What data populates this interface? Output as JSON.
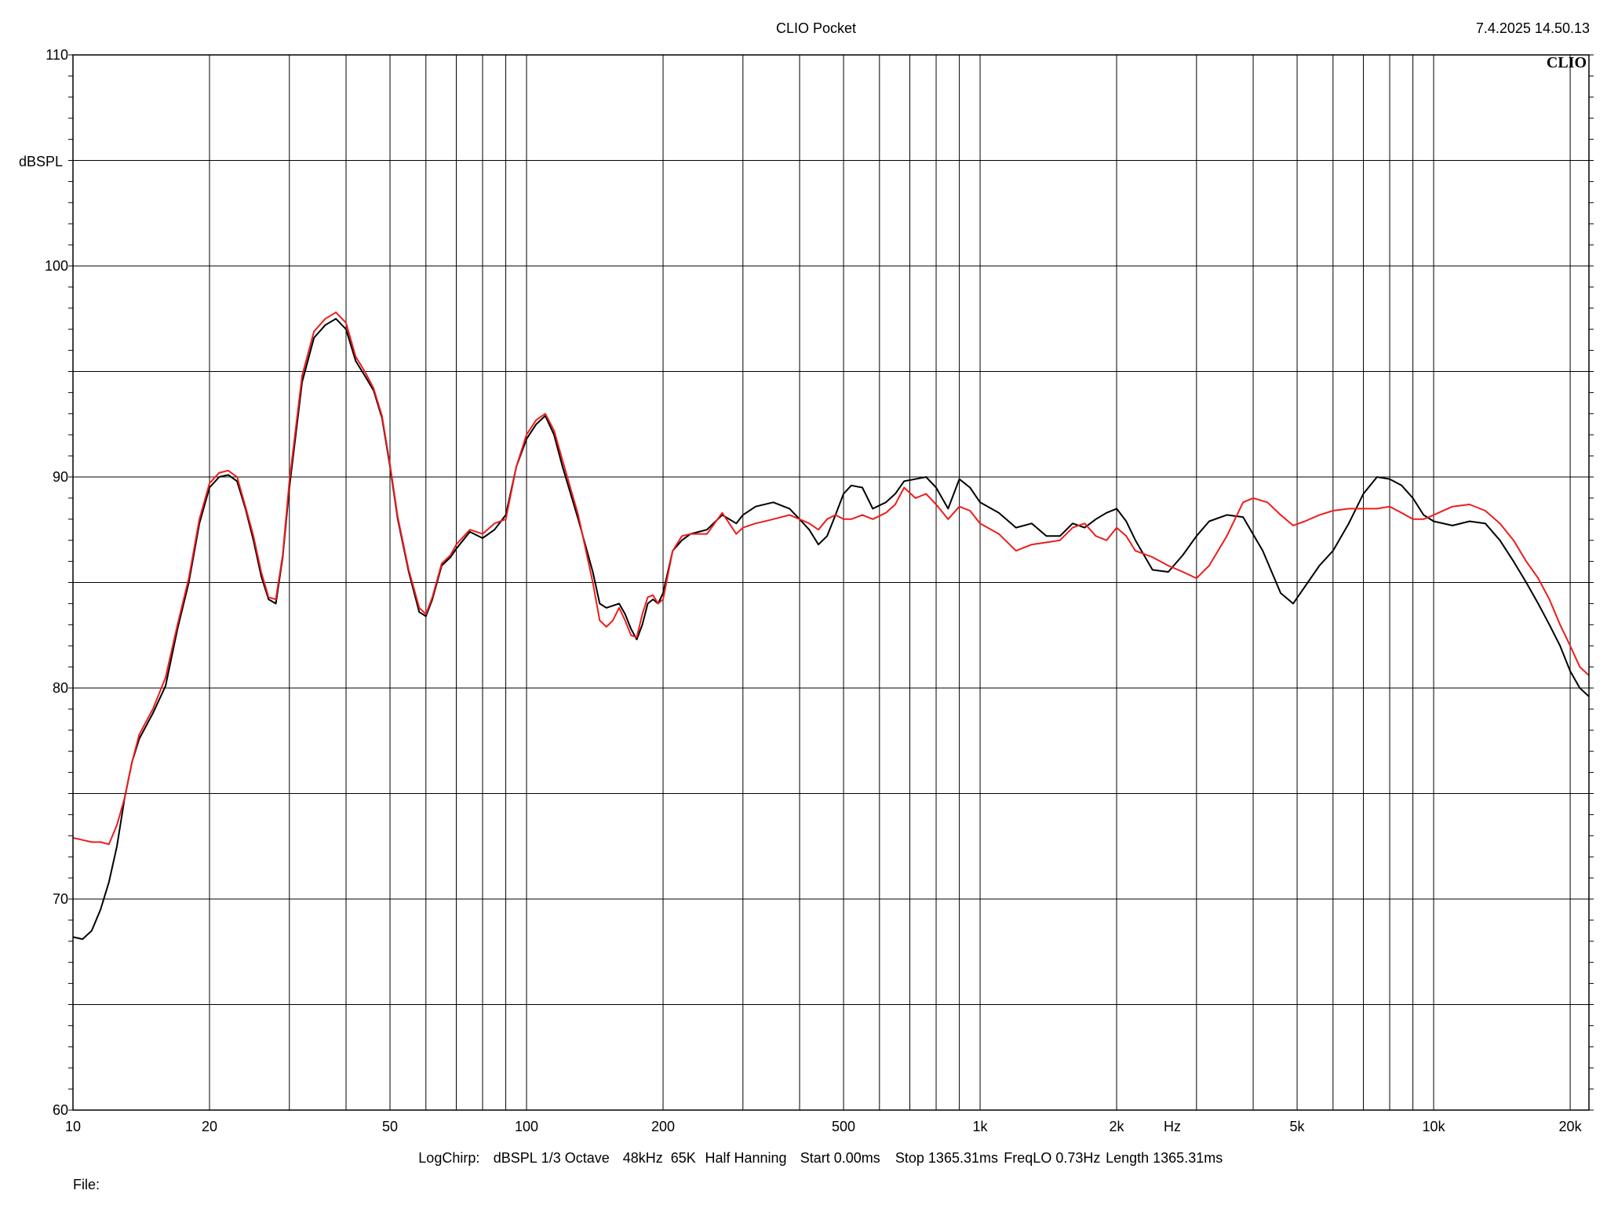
{
  "header": {
    "title": "CLIO Pocket",
    "timestamp": "7.4.2025 14.50.13",
    "brand": "CLIO"
  },
  "footer": {
    "settings": [
      "LogChirp:",
      "dBSPL",
      "1/3 Octave",
      "48kHz",
      "65K",
      "Half Hanning",
      "Start 0.00ms",
      "Stop 1365.31ms",
      "FreqLO 0.73Hz",
      "Length 1365.31ms"
    ],
    "file_label": "File:"
  },
  "chart_data": {
    "type": "line",
    "xscale": "log",
    "xlim": [
      10,
      22000
    ],
    "ylim": [
      60,
      110
    ],
    "ylabel": "dBSPL",
    "xunit": "Hz",
    "grid": true,
    "x_ticks": [
      {
        "value": 10,
        "label": "10"
      },
      {
        "value": 20,
        "label": "20"
      },
      {
        "value": 50,
        "label": "50"
      },
      {
        "value": 100,
        "label": "100"
      },
      {
        "value": 200,
        "label": "200"
      },
      {
        "value": 500,
        "label": "500"
      },
      {
        "value": 1000,
        "label": "1k"
      },
      {
        "value": 2000,
        "label": "2k"
      },
      {
        "value": 5000,
        "label": "5k"
      },
      {
        "value": 10000,
        "label": "10k"
      },
      {
        "value": 20000,
        "label": "20k"
      }
    ],
    "y_ticks": [
      {
        "value": 60,
        "label": "60"
      },
      {
        "value": 70,
        "label": "70"
      },
      {
        "value": 80,
        "label": "80"
      },
      {
        "value": 90,
        "label": "90"
      },
      {
        "value": 100,
        "label": "100"
      },
      {
        "value": 110,
        "label": "110"
      }
    ],
    "series": [
      {
        "color": "#000000",
        "points": [
          [
            10,
            68.2
          ],
          [
            10.5,
            68.1
          ],
          [
            11,
            68.5
          ],
          [
            11.5,
            69.5
          ],
          [
            12,
            70.8
          ],
          [
            12.5,
            72.5
          ],
          [
            13,
            74.8
          ],
          [
            13.5,
            76.5
          ],
          [
            14,
            77.6
          ],
          [
            15,
            78.8
          ],
          [
            16,
            80.1
          ],
          [
            17,
            82.8
          ],
          [
            18,
            85.0
          ],
          [
            19,
            87.8
          ],
          [
            20,
            89.5
          ],
          [
            21,
            90.0
          ],
          [
            22,
            90.1
          ],
          [
            23,
            89.8
          ],
          [
            24,
            88.5
          ],
          [
            25,
            87.0
          ],
          [
            26,
            85.3
          ],
          [
            27,
            84.2
          ],
          [
            28,
            84.0
          ],
          [
            29,
            86.2
          ],
          [
            30,
            89.5
          ],
          [
            32,
            94.5
          ],
          [
            34,
            96.6
          ],
          [
            36,
            97.2
          ],
          [
            38,
            97.5
          ],
          [
            40,
            97.0
          ],
          [
            42,
            95.5
          ],
          [
            44,
            94.8
          ],
          [
            46,
            94.1
          ],
          [
            48,
            92.8
          ],
          [
            50,
            90.5
          ],
          [
            52,
            88.0
          ],
          [
            55,
            85.5
          ],
          [
            58,
            83.6
          ],
          [
            60,
            83.4
          ],
          [
            62,
            84.2
          ],
          [
            65,
            85.8
          ],
          [
            68,
            86.2
          ],
          [
            70,
            86.6
          ],
          [
            75,
            87.4
          ],
          [
            80,
            87.1
          ],
          [
            85,
            87.5
          ],
          [
            90,
            88.2
          ],
          [
            95,
            90.5
          ],
          [
            100,
            91.8
          ],
          [
            105,
            92.5
          ],
          [
            110,
            92.9
          ],
          [
            115,
            92.0
          ],
          [
            120,
            90.5
          ],
          [
            130,
            88.0
          ],
          [
            140,
            85.5
          ],
          [
            145,
            84.0
          ],
          [
            150,
            83.8
          ],
          [
            155,
            83.9
          ],
          [
            160,
            84.0
          ],
          [
            165,
            83.5
          ],
          [
            170,
            82.8
          ],
          [
            175,
            82.3
          ],
          [
            180,
            83.0
          ],
          [
            185,
            84.0
          ],
          [
            190,
            84.2
          ],
          [
            195,
            84.0
          ],
          [
            200,
            84.5
          ],
          [
            210,
            86.5
          ],
          [
            220,
            87.0
          ],
          [
            230,
            87.3
          ],
          [
            250,
            87.5
          ],
          [
            270,
            88.2
          ],
          [
            290,
            87.8
          ],
          [
            300,
            88.2
          ],
          [
            320,
            88.6
          ],
          [
            350,
            88.8
          ],
          [
            380,
            88.5
          ],
          [
            400,
            88.0
          ],
          [
            420,
            87.5
          ],
          [
            440,
            86.8
          ],
          [
            460,
            87.2
          ],
          [
            480,
            88.2
          ],
          [
            500,
            89.2
          ],
          [
            520,
            89.6
          ],
          [
            550,
            89.5
          ],
          [
            580,
            88.5
          ],
          [
            620,
            88.8
          ],
          [
            650,
            89.2
          ],
          [
            680,
            89.8
          ],
          [
            720,
            89.9
          ],
          [
            760,
            90.0
          ],
          [
            800,
            89.5
          ],
          [
            850,
            88.5
          ],
          [
            900,
            89.9
          ],
          [
            950,
            89.5
          ],
          [
            1000,
            88.8
          ],
          [
            1100,
            88.3
          ],
          [
            1200,
            87.6
          ],
          [
            1300,
            87.8
          ],
          [
            1400,
            87.2
          ],
          [
            1500,
            87.2
          ],
          [
            1600,
            87.8
          ],
          [
            1700,
            87.6
          ],
          [
            1800,
            88.0
          ],
          [
            1900,
            88.3
          ],
          [
            2000,
            88.5
          ],
          [
            2100,
            87.9
          ],
          [
            2200,
            87.0
          ],
          [
            2400,
            85.6
          ],
          [
            2600,
            85.5
          ],
          [
            2800,
            86.3
          ],
          [
            3000,
            87.2
          ],
          [
            3200,
            87.9
          ],
          [
            3500,
            88.2
          ],
          [
            3800,
            88.1
          ],
          [
            4200,
            86.5
          ],
          [
            4600,
            84.5
          ],
          [
            4900,
            84.0
          ],
          [
            5200,
            84.8
          ],
          [
            5600,
            85.8
          ],
          [
            6000,
            86.5
          ],
          [
            6500,
            87.8
          ],
          [
            7000,
            89.2
          ],
          [
            7500,
            90.0
          ],
          [
            8000,
            89.9
          ],
          [
            8500,
            89.6
          ],
          [
            9000,
            89.0
          ],
          [
            9500,
            88.2
          ],
          [
            10000,
            87.9
          ],
          [
            11000,
            87.7
          ],
          [
            12000,
            87.9
          ],
          [
            13000,
            87.8
          ],
          [
            14000,
            87.0
          ],
          [
            15000,
            86.0
          ],
          [
            16000,
            85.0
          ],
          [
            17000,
            84.0
          ],
          [
            18000,
            83.0
          ],
          [
            19000,
            82.0
          ],
          [
            20000,
            80.8
          ],
          [
            21000,
            80.0
          ],
          [
            22000,
            79.6
          ]
        ]
      },
      {
        "color": "#ee1c1c",
        "points": [
          [
            10,
            72.9
          ],
          [
            10.5,
            72.8
          ],
          [
            11,
            72.7
          ],
          [
            11.5,
            72.7
          ],
          [
            12,
            72.6
          ],
          [
            12.5,
            73.5
          ],
          [
            13,
            74.8
          ],
          [
            13.5,
            76.5
          ],
          [
            14,
            77.8
          ],
          [
            15,
            79.0
          ],
          [
            16,
            80.5
          ],
          [
            17,
            83.0
          ],
          [
            18,
            85.2
          ],
          [
            19,
            88.0
          ],
          [
            20,
            89.7
          ],
          [
            21,
            90.2
          ],
          [
            22,
            90.3
          ],
          [
            23,
            90.0
          ],
          [
            24,
            88.6
          ],
          [
            25,
            87.2
          ],
          [
            26,
            85.5
          ],
          [
            27,
            84.3
          ],
          [
            28,
            84.2
          ],
          [
            29,
            86.3
          ],
          [
            30,
            89.8
          ],
          [
            32,
            94.8
          ],
          [
            34,
            96.9
          ],
          [
            36,
            97.5
          ],
          [
            38,
            97.8
          ],
          [
            40,
            97.3
          ],
          [
            42,
            95.7
          ],
          [
            44,
            95.0
          ],
          [
            46,
            94.2
          ],
          [
            48,
            92.9
          ],
          [
            50,
            90.6
          ],
          [
            52,
            88.1
          ],
          [
            55,
            85.6
          ],
          [
            58,
            83.8
          ],
          [
            60,
            83.5
          ],
          [
            62,
            84.3
          ],
          [
            65,
            85.9
          ],
          [
            68,
            86.3
          ],
          [
            70,
            86.8
          ],
          [
            75,
            87.5
          ],
          [
            80,
            87.3
          ],
          [
            85,
            87.8
          ],
          [
            90,
            88.0
          ],
          [
            95,
            90.5
          ],
          [
            100,
            92.0
          ],
          [
            105,
            92.7
          ],
          [
            110,
            93.0
          ],
          [
            115,
            92.2
          ],
          [
            120,
            90.8
          ],
          [
            130,
            88.2
          ],
          [
            140,
            85.0
          ],
          [
            145,
            83.2
          ],
          [
            150,
            82.9
          ],
          [
            155,
            83.2
          ],
          [
            160,
            83.8
          ],
          [
            165,
            83.2
          ],
          [
            170,
            82.5
          ],
          [
            175,
            82.4
          ],
          [
            180,
            83.5
          ],
          [
            185,
            84.3
          ],
          [
            190,
            84.4
          ],
          [
            195,
            84.0
          ],
          [
            200,
            84.2
          ],
          [
            210,
            86.5
          ],
          [
            220,
            87.2
          ],
          [
            230,
            87.3
          ],
          [
            250,
            87.3
          ],
          [
            270,
            88.3
          ],
          [
            290,
            87.3
          ],
          [
            300,
            87.6
          ],
          [
            320,
            87.8
          ],
          [
            350,
            88.0
          ],
          [
            380,
            88.2
          ],
          [
            400,
            88.0
          ],
          [
            420,
            87.8
          ],
          [
            440,
            87.5
          ],
          [
            460,
            88.0
          ],
          [
            480,
            88.2
          ],
          [
            500,
            88.0
          ],
          [
            520,
            88.0
          ],
          [
            550,
            88.2
          ],
          [
            580,
            88.0
          ],
          [
            620,
            88.3
          ],
          [
            650,
            88.7
          ],
          [
            680,
            89.5
          ],
          [
            720,
            89.0
          ],
          [
            760,
            89.2
          ],
          [
            800,
            88.7
          ],
          [
            850,
            88.0
          ],
          [
            900,
            88.6
          ],
          [
            950,
            88.4
          ],
          [
            1000,
            87.8
          ],
          [
            1100,
            87.3
          ],
          [
            1200,
            86.5
          ],
          [
            1300,
            86.8
          ],
          [
            1400,
            86.9
          ],
          [
            1500,
            87.0
          ],
          [
            1600,
            87.6
          ],
          [
            1700,
            87.8
          ],
          [
            1800,
            87.2
          ],
          [
            1900,
            87.0
          ],
          [
            2000,
            87.6
          ],
          [
            2100,
            87.2
          ],
          [
            2200,
            86.5
          ],
          [
            2400,
            86.2
          ],
          [
            2600,
            85.8
          ],
          [
            2800,
            85.5
          ],
          [
            3000,
            85.2
          ],
          [
            3200,
            85.8
          ],
          [
            3500,
            87.2
          ],
          [
            3800,
            88.8
          ],
          [
            4000,
            89.0
          ],
          [
            4300,
            88.8
          ],
          [
            4600,
            88.2
          ],
          [
            4900,
            87.7
          ],
          [
            5200,
            87.9
          ],
          [
            5600,
            88.2
          ],
          [
            6000,
            88.4
          ],
          [
            6500,
            88.5
          ],
          [
            7000,
            88.5
          ],
          [
            7500,
            88.5
          ],
          [
            8000,
            88.6
          ],
          [
            8500,
            88.3
          ],
          [
            9000,
            88.0
          ],
          [
            9500,
            88.0
          ],
          [
            10000,
            88.2
          ],
          [
            11000,
            88.6
          ],
          [
            12000,
            88.7
          ],
          [
            13000,
            88.4
          ],
          [
            14000,
            87.8
          ],
          [
            15000,
            87.0
          ],
          [
            16000,
            86.0
          ],
          [
            17000,
            85.2
          ],
          [
            18000,
            84.2
          ],
          [
            19000,
            83.0
          ],
          [
            20000,
            82.0
          ],
          [
            21000,
            81.0
          ],
          [
            22000,
            80.6
          ]
        ]
      }
    ]
  }
}
